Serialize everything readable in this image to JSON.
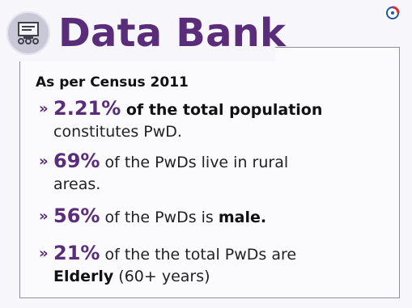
{
  "header": {
    "title": "Data Bank",
    "icon": "data-bank-icon",
    "logo": "brand-logo-icon"
  },
  "subtitle": "As per Census 2011",
  "colors": {
    "accent": "#5a2d7a",
    "frame": "#8f8f9b",
    "logo_red": "#e02b2b",
    "logo_blue": "#2456a8"
  },
  "bullets": [
    {
      "marker": "»",
      "stat": "2.21%",
      "text_bold": " of the total population",
      "line2": "constitutes PwD."
    },
    {
      "marker": "»",
      "stat": "69%",
      "text": " of the PwDs live in rural",
      "line2": "areas."
    },
    {
      "marker": "»",
      "stat": "56%",
      "text": "  of the PwDs is ",
      "text_bold": "male."
    },
    {
      "marker": "»",
      "stat": "21%",
      "text": " of the the total PwDs  are",
      "line2_bold": "Elderly",
      "line2": " (60+ years)"
    }
  ]
}
